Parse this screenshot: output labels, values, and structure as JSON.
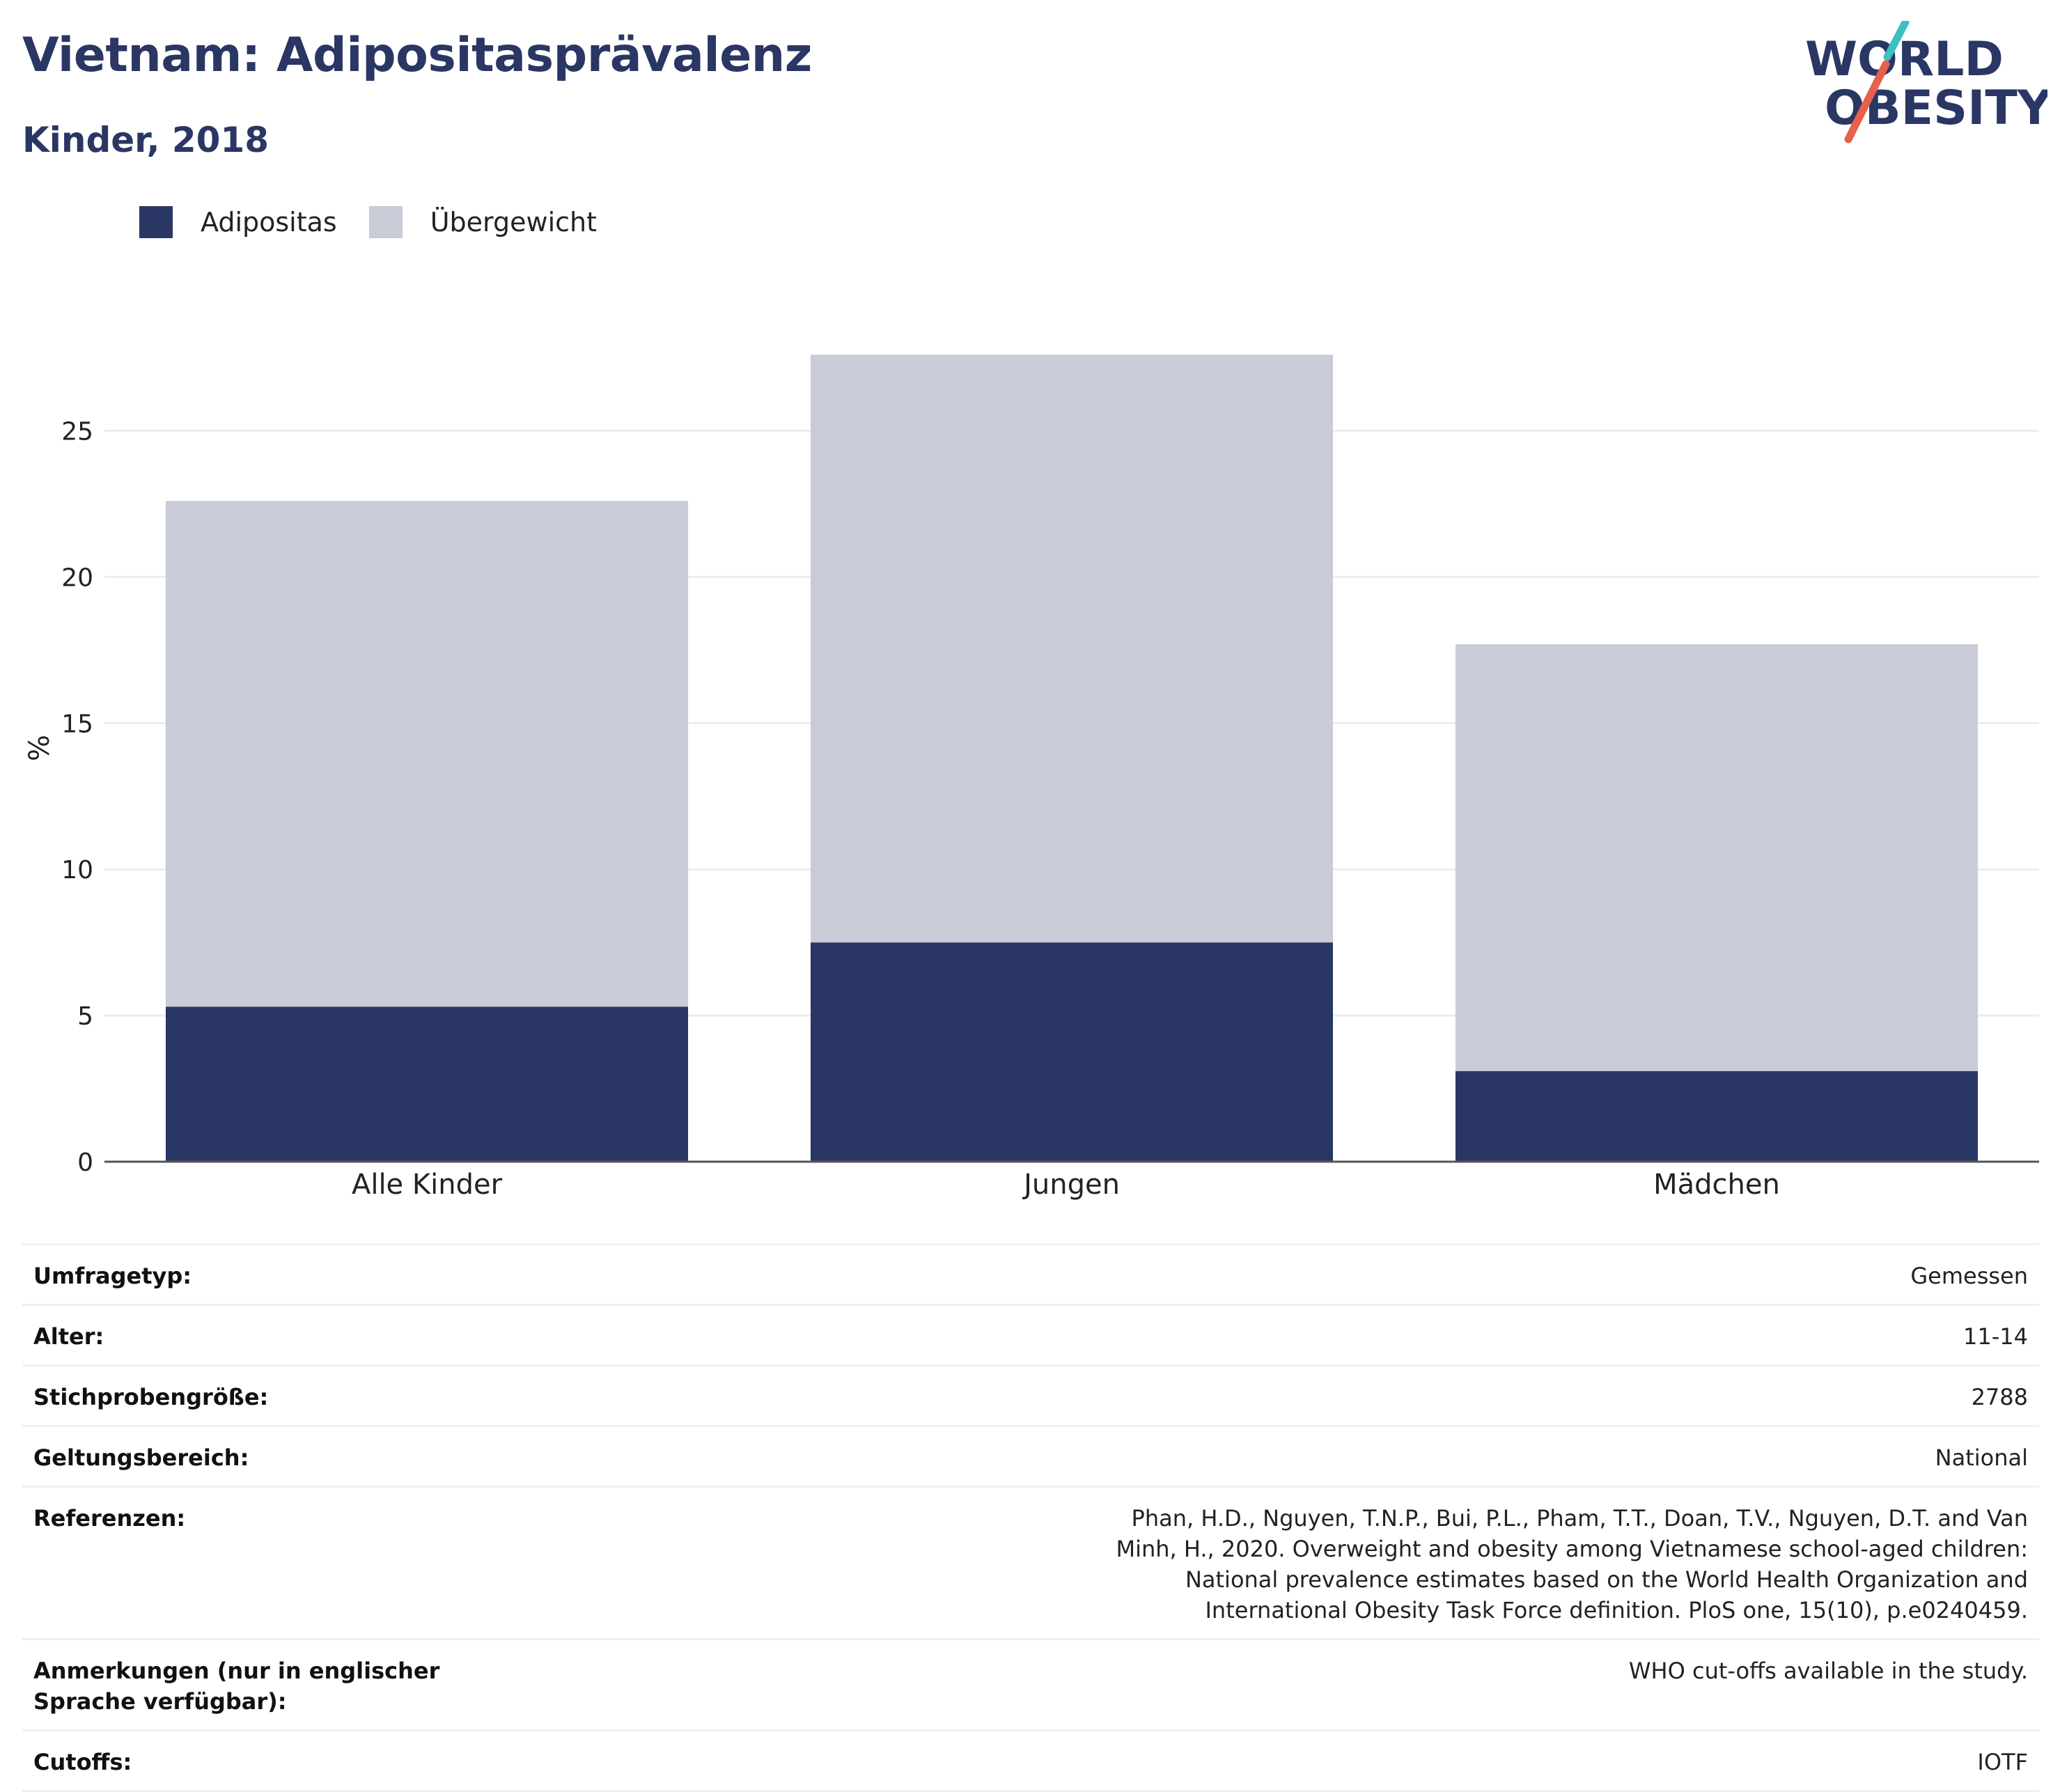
{
  "header": {
    "title": "Vietnam: Adipositasprävalenz",
    "subtitle": "Kinder, 2018"
  },
  "logo": {
    "line1": "WORLD",
    "line2": "OBESITY",
    "colors": {
      "text": "#2a3664",
      "slash_top": "#3bbfbf",
      "slash_bottom": "#e8604c"
    }
  },
  "legend": [
    {
      "label": "Adipositas",
      "color": "#2a3664"
    },
    {
      "label": "Übergewicht",
      "color": "#c9cbd7"
    }
  ],
  "chart_data": {
    "type": "bar",
    "stacked": true,
    "categories": [
      "Alle Kinder",
      "Jungen",
      "Mädchen"
    ],
    "series": [
      {
        "name": "Adipositas",
        "color": "#2a3664",
        "values": [
          5.3,
          7.5,
          3.1
        ]
      },
      {
        "name": "Übergewicht",
        "color": "#c9cbd7",
        "values": [
          17.3,
          20.1,
          14.6
        ]
      }
    ],
    "ylabel": "%",
    "yticks": [
      0,
      5,
      10,
      15,
      20,
      25
    ],
    "ylim": [
      0,
      28.3
    ],
    "grid": true,
    "legend_position": "top-left"
  },
  "info": [
    {
      "label": "Umfragetyp:",
      "value": "Gemessen"
    },
    {
      "label": "Alter:",
      "value": "11-14"
    },
    {
      "label": "Stichprobengröße:",
      "value": "2788"
    },
    {
      "label": "Geltungsbereich:",
      "value": "National"
    },
    {
      "label": "Referenzen:",
      "value": "Phan, H.D., Nguyen, T.N.P., Bui, P.L., Pham, T.T., Doan, T.V., Nguyen, D.T. and Van Minh, H., 2020. Overweight and obesity among Vietnamese school-aged children: National prevalence estimates based on the World Health Organization and International Obesity Task Force definition. PloS one, 15(10), p.e0240459."
    },
    {
      "label": "Anmerkungen (nur in englischer Sprache verfügbar):",
      "value": "WHO cut-offs available in the study."
    },
    {
      "label": "Cutoffs:",
      "value": "IOTF"
    }
  ]
}
